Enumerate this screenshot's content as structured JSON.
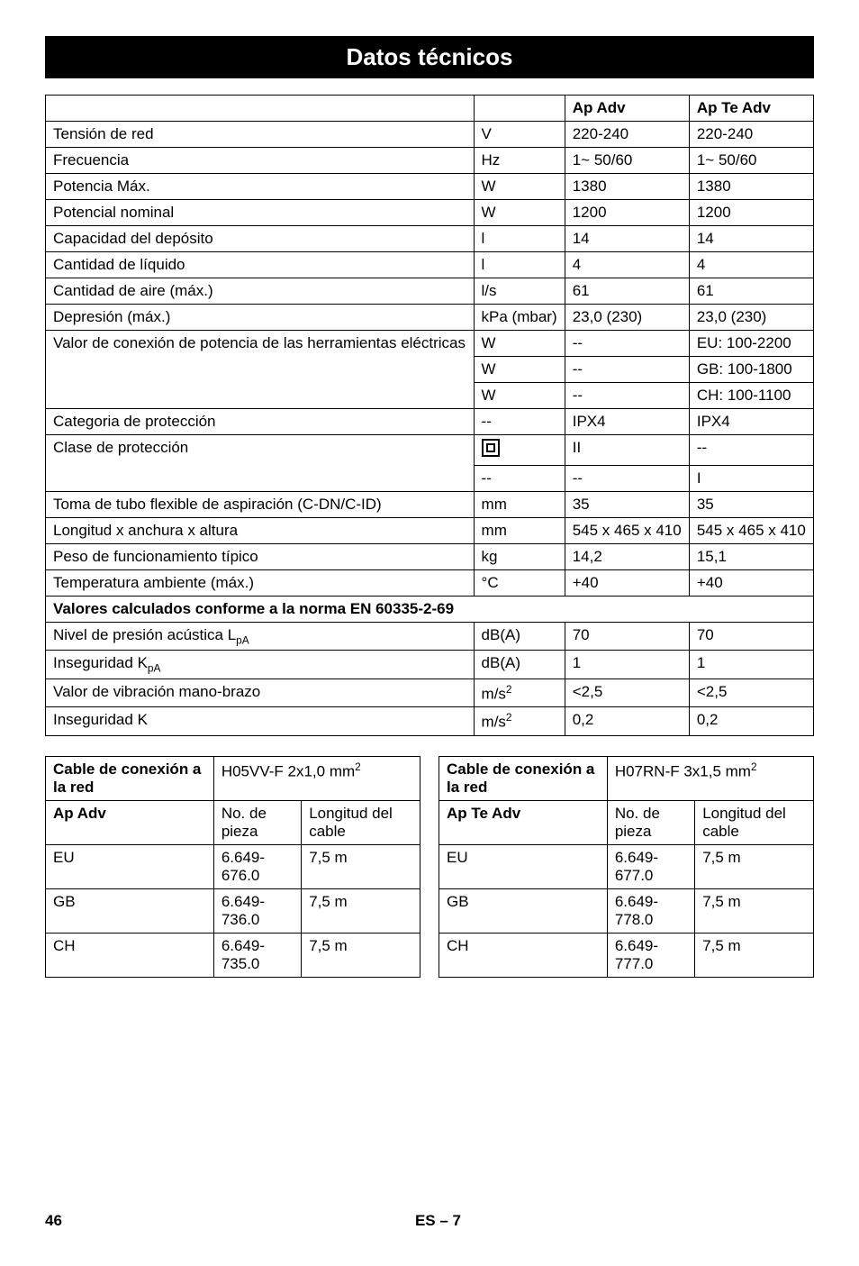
{
  "title": "Datos técnicos",
  "main_table": {
    "header": [
      "",
      "",
      "Ap Adv",
      "Ap Te Adv"
    ],
    "rows": [
      [
        "Tensión de red",
        "V",
        "220-240",
        "220-240"
      ],
      [
        "Frecuencia",
        "Hz",
        "1~ 50/60",
        "1~ 50/60"
      ],
      [
        "Potencia Máx.",
        "W",
        "1380",
        "1380"
      ],
      [
        "Potencial nominal",
        "W",
        "1200",
        "1200"
      ],
      [
        "Capacidad del depósito",
        "l",
        "14",
        "14"
      ],
      [
        "Cantidad de líquido",
        "l",
        "4",
        "4"
      ],
      [
        "Cantidad de aire (máx.)",
        "l/s",
        "61",
        "61"
      ],
      [
        "Depresión (máx.)",
        "kPa (mbar)",
        "23,0 (230)",
        "23,0 (230)"
      ]
    ],
    "valor_conexion": {
      "label": "Valor de conexión de potencia de las herramientas eléctricas",
      "rows": [
        [
          "W",
          "--",
          "EU: 100-2200"
        ],
        [
          "W",
          "--",
          "GB: 100-1800"
        ],
        [
          "W",
          "--",
          "CH: 100-1100"
        ]
      ]
    },
    "rows2": [
      [
        "Categoria de protección",
        "--",
        "IPX4",
        "IPX4"
      ]
    ],
    "clase_proteccion": {
      "label": "Clase de protección",
      "rows": [
        [
          "__ICON__",
          "II",
          "--"
        ],
        [
          "--",
          "--",
          "I"
        ]
      ]
    },
    "rows3": [
      [
        "Toma de tubo flexible de aspiración (C-DN/C-ID)",
        "mm",
        "35",
        "35"
      ],
      [
        "Longitud x anchura x altura",
        "mm",
        "545 x 465 x 410",
        "545 x 465 x 410"
      ],
      [
        "Peso de funcionamiento típico",
        "kg",
        "14,2",
        "15,1"
      ],
      [
        "Temperatura ambiente (máx.)",
        "°C",
        "+40",
        "+40"
      ]
    ],
    "section_header": "Valores calculados conforme a la norma EN 60335-2-69",
    "rows4": [
      {
        "cells": [
          "Nivel de presión acústica L",
          "dB(A)",
          "70",
          "70"
        ],
        "sub": "pA",
        "sub_pos": 0
      },
      {
        "cells": [
          "Inseguridad K",
          "dB(A)",
          "1",
          "1"
        ],
        "sub": "pA",
        "sub_pos": 0
      },
      {
        "cells": [
          "Valor de vibración mano-brazo",
          "m/s",
          "<2,5",
          "<2,5"
        ],
        "sup": "2",
        "sup_pos": 1
      },
      {
        "cells": [
          "Inseguridad K",
          "m/s",
          "0,2",
          "0,2"
        ],
        "sup": "2",
        "sup_pos": 1
      }
    ]
  },
  "cable_tables": [
    {
      "header_label": "Cable de conexión a la red",
      "header_spec": "H05VV-F 2x1,0 mm",
      "header_sup": "2",
      "model": "Ap Adv",
      "col2": "No. de pieza",
      "col3": "Longitud del cable",
      "rows": [
        [
          "EU",
          "6.649-676.0",
          "7,5 m"
        ],
        [
          "GB",
          "6.649-736.0",
          "7,5 m"
        ],
        [
          "CH",
          "6.649-735.0",
          "7,5 m"
        ]
      ]
    },
    {
      "header_label": "Cable de conexión a la red",
      "header_spec": "H07RN-F 3x1,5 mm",
      "header_sup": "2",
      "model": "Ap Te Adv",
      "col2": "No. de pieza",
      "col3": "Longitud del cable",
      "rows": [
        [
          "EU",
          "6.649-677.0",
          "7,5 m"
        ],
        [
          "GB",
          "6.649-778.0",
          "7,5 m"
        ],
        [
          "CH",
          "6.649-777.0",
          "7,5 m"
        ]
      ]
    }
  ],
  "footer": {
    "page": "46",
    "center": "ES – 7"
  }
}
